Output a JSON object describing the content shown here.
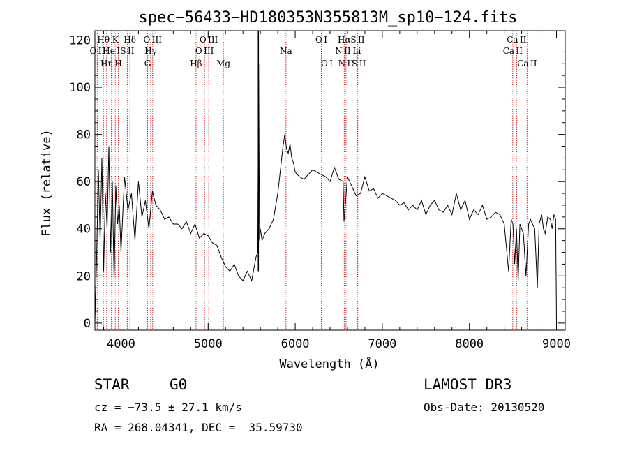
{
  "chart_data": {
    "type": "line",
    "title": "spec−56433−HD180353N355813M_sp10−124.fits",
    "xlabel": "Wavelength (Å)",
    "ylabel": "Flux (relative)",
    "xlim": [
      3700,
      9100
    ],
    "ylim": [
      -3,
      124
    ],
    "xticks": [
      4000,
      5000,
      6000,
      7000,
      8000,
      9000
    ],
    "yticks": [
      0,
      20,
      40,
      60,
      80,
      100,
      120
    ],
    "grid": false,
    "series": [
      {
        "name": "flux",
        "x": [
          3700,
          3720,
          3740,
          3760,
          3780,
          3800,
          3820,
          3840,
          3860,
          3880,
          3900,
          3920,
          3940,
          3960,
          3980,
          4000,
          4040,
          4080,
          4120,
          4160,
          4200,
          4240,
          4280,
          4320,
          4360,
          4400,
          4450,
          4500,
          4550,
          4600,
          4650,
          4700,
          4750,
          4800,
          4850,
          4900,
          4950,
          5000,
          5050,
          5100,
          5150,
          5200,
          5250,
          5300,
          5350,
          5400,
          5450,
          5500,
          5550,
          5570,
          5580,
          5590,
          5600,
          5620,
          5650,
          5700,
          5750,
          5800,
          5830,
          5860,
          5880,
          5900,
          5920,
          5940,
          5960,
          5980,
          6000,
          6050,
          6100,
          6150,
          6200,
          6250,
          6300,
          6350,
          6400,
          6450,
          6500,
          6550,
          6560,
          6600,
          6650,
          6700,
          6750,
          6800,
          6850,
          6900,
          6950,
          7000,
          7050,
          7100,
          7150,
          7200,
          7250,
          7300,
          7350,
          7400,
          7450,
          7500,
          7550,
          7600,
          7650,
          7700,
          7750,
          7800,
          7850,
          7900,
          7950,
          8000,
          8050,
          8100,
          8150,
          8200,
          8250,
          8300,
          8350,
          8400,
          8450,
          8480,
          8500,
          8520,
          8540,
          8560,
          8580,
          8600,
          8620,
          8650,
          8680,
          8700,
          8750,
          8780,
          8800,
          8830,
          8850,
          8870,
          8900,
          8930,
          8950,
          8970,
          8990,
          9000
        ],
        "y": [
          0,
          28,
          65,
          35,
          70,
          22,
          55,
          40,
          75,
          30,
          60,
          18,
          58,
          42,
          50,
          30,
          62,
          48,
          55,
          35,
          60,
          45,
          52,
          40,
          56,
          50,
          48,
          44,
          45,
          42,
          42,
          40,
          43,
          38,
          42,
          36,
          38,
          37,
          34,
          33,
          28,
          24,
          22,
          25,
          20,
          18,
          22,
          18,
          28,
          30,
          110,
          35,
          40,
          35,
          38,
          40,
          44,
          55,
          65,
          75,
          80,
          74,
          72,
          76,
          70,
          68,
          64,
          62,
          61,
          63,
          65,
          64,
          63,
          62,
          60,
          66,
          61,
          60,
          43,
          62,
          58,
          54,
          55,
          62,
          56,
          57,
          53,
          55,
          54,
          53,
          52,
          50,
          51,
          48,
          50,
          48,
          52,
          46,
          50,
          52,
          48,
          47,
          50,
          46,
          55,
          48,
          52,
          44,
          48,
          46,
          50,
          44,
          45,
          47,
          46,
          42,
          22,
          44,
          42,
          25,
          40,
          18,
          42,
          40,
          38,
          20,
          42,
          44,
          40,
          15,
          42,
          46,
          40,
          38,
          45,
          44,
          40,
          46,
          44,
          0
        ]
      }
    ],
    "annotations": {
      "emission_line": {
        "x": 5577
      },
      "lines": [
        {
          "label": "O II",
          "x": 3727,
          "row": 2
        },
        {
          "label": "Hθ",
          "x": 3798,
          "row": 1
        },
        {
          "label": "Hη",
          "x": 3835,
          "row": 3
        },
        {
          "label": "He I",
          "x": 3889,
          "row": 2
        },
        {
          "label": "K",
          "x": 3934,
          "row": 1
        },
        {
          "label": "H",
          "x": 3969,
          "row": 3
        },
        {
          "label": "S II",
          "x": 4072,
          "row": 2
        },
        {
          "label": "Hδ",
          "x": 4102,
          "row": 1
        },
        {
          "label": "G",
          "x": 4305,
          "row": 3
        },
        {
          "label": "Hγ",
          "x": 4341,
          "row": 2
        },
        {
          "label": "O III",
          "x": 4363,
          "row": 1
        },
        {
          "label": "Hβ",
          "x": 4861,
          "row": 3
        },
        {
          "label": "O III",
          "x": 4959,
          "row": 2
        },
        {
          "label": "O III",
          "x": 5007,
          "row": 1
        },
        {
          "label": "Mg",
          "x": 5175,
          "row": 3
        },
        {
          "label": "Na",
          "x": 5894,
          "row": 2
        },
        {
          "label": "O I",
          "x": 6300,
          "row": 1
        },
        {
          "label": "O I",
          "x": 6364,
          "row": 3
        },
        {
          "label": "N II",
          "x": 6548,
          "row": 2
        },
        {
          "label": "Hα",
          "x": 6563,
          "row": 1
        },
        {
          "label": "N II",
          "x": 6583,
          "row": 3
        },
        {
          "label": "Li",
          "x": 6708,
          "row": 2
        },
        {
          "label": "S II",
          "x": 6716,
          "row": 1
        },
        {
          "label": "S II",
          "x": 6731,
          "row": 3
        },
        {
          "label": "Ca II",
          "x": 8498,
          "row": 2
        },
        {
          "label": "Ca II",
          "x": 8542,
          "row": 1
        },
        {
          "label": "Ca II",
          "x": 8662,
          "row": 3
        }
      ]
    }
  },
  "info": {
    "object_type": "STAR",
    "subclass": "G0",
    "cz": "cz = −73.5 ± 27.1 km/s",
    "coords": "RA = 268.04341, DEC =  35.59730",
    "survey": "LAMOST DR3",
    "obs_date": "Obs-Date: 20130520"
  },
  "colors": {
    "line": "#000000",
    "marker": "#cc0000"
  }
}
